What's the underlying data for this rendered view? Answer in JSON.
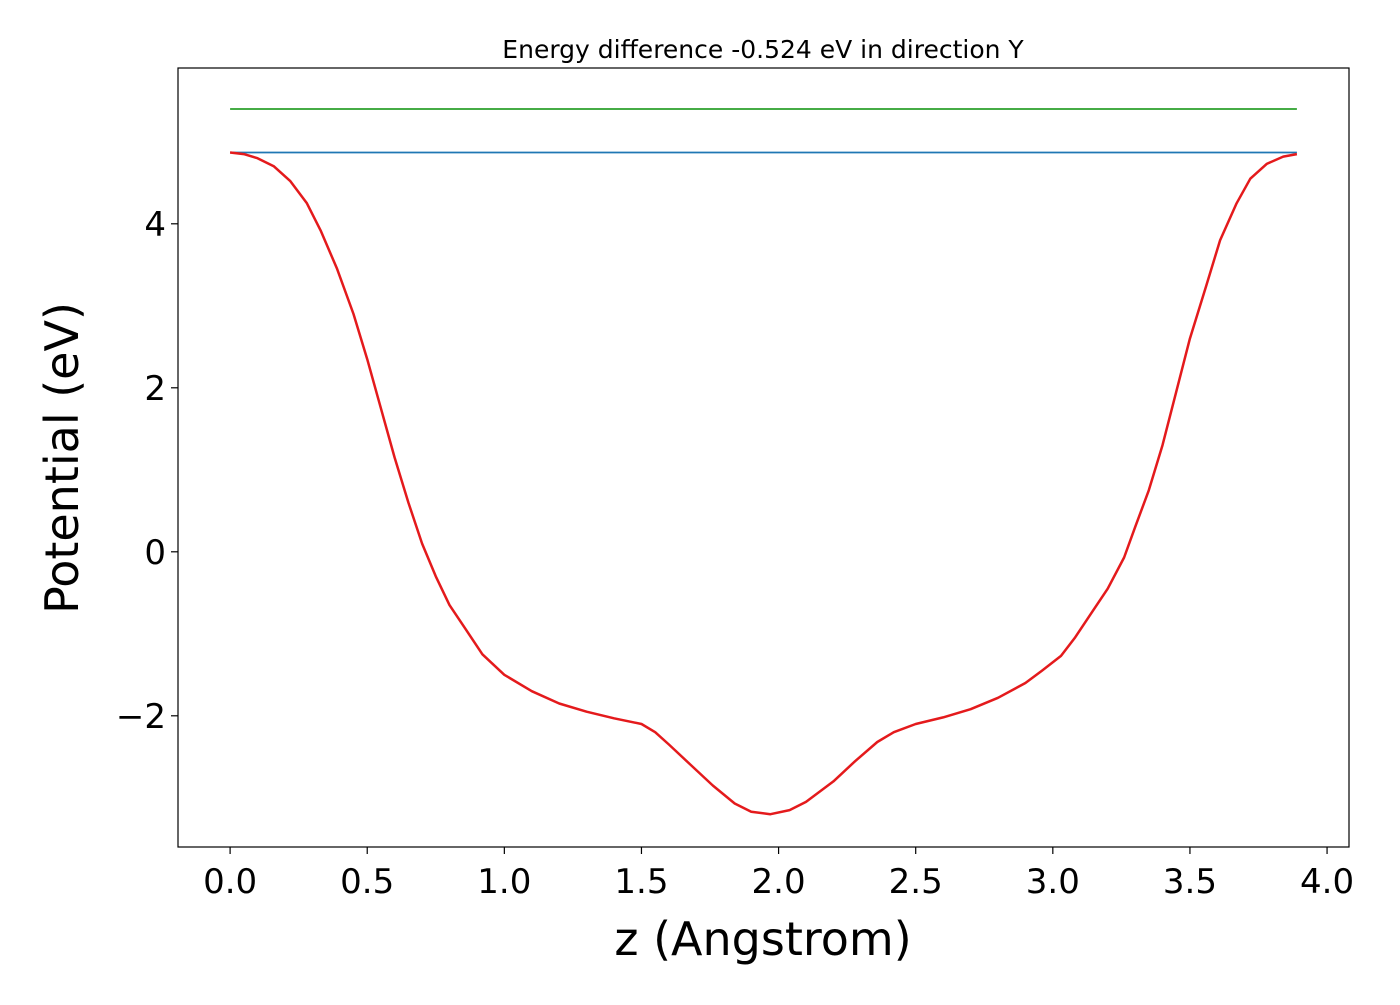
{
  "chart_data": {
    "type": "line",
    "title": "Energy difference -0.524 eV in direction Y",
    "xlabel": "z (Angstrom)",
    "ylabel": "Potential (eV)",
    "xlim": [
      -0.19,
      4.08
    ],
    "ylim": [
      -3.6,
      5.9
    ],
    "grid": false,
    "x_ticks": [
      {
        "value": 0.0,
        "label": "0.0"
      },
      {
        "value": 0.5,
        "label": "0.5"
      },
      {
        "value": 1.0,
        "label": "1.0"
      },
      {
        "value": 1.5,
        "label": "1.5"
      },
      {
        "value": 2.0,
        "label": "2.0"
      },
      {
        "value": 2.5,
        "label": "2.5"
      },
      {
        "value": 3.0,
        "label": "3.0"
      },
      {
        "value": 3.5,
        "label": "3.5"
      },
      {
        "value": 4.0,
        "label": "4.0"
      }
    ],
    "y_ticks": [
      {
        "value": -2,
        "label": "−2"
      },
      {
        "value": 0,
        "label": "0"
      },
      {
        "value": 2,
        "label": "2"
      },
      {
        "value": 4,
        "label": "4"
      }
    ],
    "series": [
      {
        "color": "#2ca02c",
        "x": [
          0.0,
          3.89
        ],
        "y": [
          5.4,
          5.4
        ]
      },
      {
        "color": "#1f77b4",
        "x": [
          0.0,
          3.89
        ],
        "y": [
          4.87,
          4.87
        ]
      },
      {
        "color": "#e41a1c",
        "x": [
          0.0,
          0.05,
          0.1,
          0.16,
          0.22,
          0.28,
          0.33,
          0.39,
          0.45,
          0.5,
          0.55,
          0.6,
          0.65,
          0.7,
          0.75,
          0.8,
          0.86,
          0.92,
          1.0,
          1.1,
          1.2,
          1.3,
          1.4,
          1.5,
          1.55,
          1.6,
          1.68,
          1.76,
          1.84,
          1.9,
          1.97,
          2.04,
          2.1,
          2.2,
          2.28,
          2.36,
          2.42,
          2.5,
          2.6,
          2.7,
          2.8,
          2.9,
          2.96,
          3.03,
          3.08,
          3.14,
          3.2,
          3.26,
          3.3,
          3.35,
          3.4,
          3.45,
          3.5,
          3.56,
          3.61,
          3.67,
          3.72,
          3.78,
          3.84,
          3.89
        ],
        "y": [
          4.87,
          4.85,
          4.8,
          4.7,
          4.52,
          4.25,
          3.92,
          3.45,
          2.9,
          2.35,
          1.75,
          1.15,
          0.6,
          0.1,
          -0.3,
          -0.65,
          -0.95,
          -1.25,
          -1.5,
          -1.7,
          -1.85,
          -1.95,
          -2.03,
          -2.1,
          -2.2,
          -2.35,
          -2.6,
          -2.85,
          -3.07,
          -3.17,
          -3.2,
          -3.15,
          -3.05,
          -2.8,
          -2.55,
          -2.32,
          -2.2,
          -2.1,
          -2.02,
          -1.92,
          -1.78,
          -1.6,
          -1.45,
          -1.27,
          -1.05,
          -0.75,
          -0.45,
          -0.07,
          0.3,
          0.75,
          1.3,
          1.95,
          2.6,
          3.25,
          3.8,
          4.25,
          4.55,
          4.73,
          4.82,
          4.85
        ]
      }
    ]
  }
}
